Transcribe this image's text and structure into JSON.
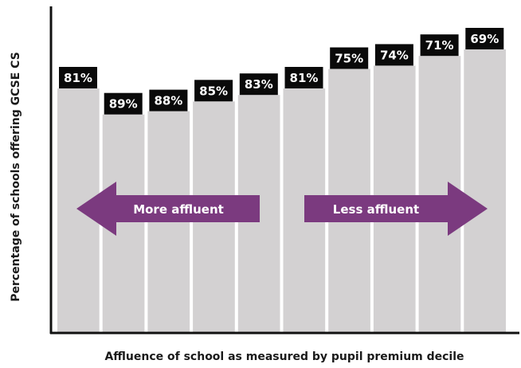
{
  "chart_data": {
    "type": "bar",
    "categories": [
      "",
      "",
      "",
      "",
      "",
      "",
      "",
      "",
      "",
      ""
    ],
    "values": [
      81,
      89,
      88,
      85,
      83,
      81,
      75,
      74,
      71,
      69
    ],
    "value_labels": [
      "81%",
      "89%",
      "88%",
      "85%",
      "83%",
      "81%",
      "75%",
      "74%",
      "71%",
      "69%"
    ],
    "title": "",
    "xlabel": "Affluence of school as measured by pupil premium decile",
    "ylabel": "Percentage of schools offering GCSE CS",
    "ylim": [
      0,
      100
    ],
    "grid": false,
    "colors": {
      "bar": "#d3d1d2",
      "label_background": "#0a0a0a",
      "label_text": "#ffffff",
      "arrow": "#7b3a7f"
    },
    "annotations": [
      {
        "text": "More affluent",
        "direction": "left"
      },
      {
        "text": "Less affluent",
        "direction": "right"
      }
    ]
  }
}
